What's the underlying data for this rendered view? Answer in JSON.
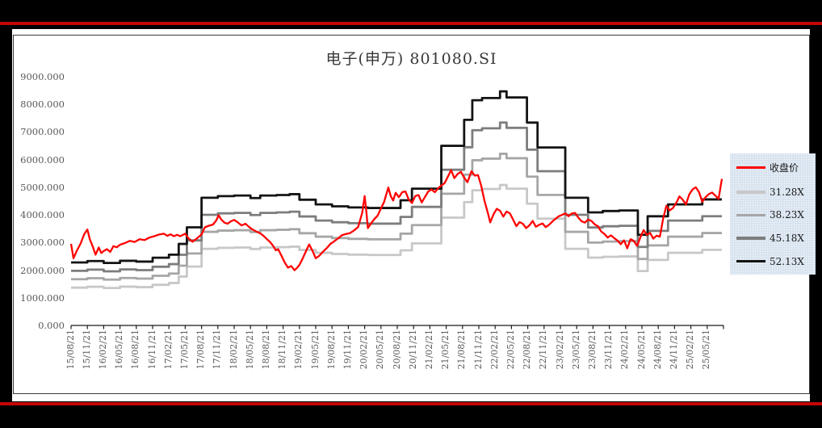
{
  "frame": {
    "background_color": "#000000",
    "accent_stripe_color": "#c40606"
  },
  "chart_data": {
    "type": "line",
    "title": "电子(申万) 801080.SI",
    "xlabel": "",
    "ylabel": "",
    "ylim": [
      0,
      9000
    ],
    "grid": false,
    "legend_position": "right",
    "y_tick_labels": [
      "9000.000",
      "8000.000",
      "7000.000",
      "6000.000",
      "5000.000",
      "4000.000",
      "3000.000",
      "2000.000",
      "1000.000",
      "0.000"
    ],
    "x_labels": [
      "15/08/21",
      "15/11/21",
      "16/02/21",
      "16/05/21",
      "16/08/21",
      "16/11/21",
      "17/02/21",
      "17/05/21",
      "17/08/21",
      "17/11/21",
      "18/02/21",
      "18/05/21",
      "18/08/21",
      "18/11/21",
      "19/02/21",
      "19/05/21",
      "19/08/21",
      "19/11/21",
      "20/02/21",
      "20/05/21",
      "20/08/21",
      "20/11/21",
      "21/02/21",
      "21/05/21",
      "21/08/21",
      "21/11/21",
      "22/02/21",
      "22/05/21",
      "22/08/21",
      "22/11/21",
      "23/02/21",
      "23/05/21",
      "23/08/21",
      "23/11/21",
      "24/02/21",
      "24/05/21",
      "24/08/21",
      "24/11/21",
      "25/02/21",
      "25/05/21"
    ],
    "legend": [
      {
        "label": "收盘价",
        "color": "#ff0000",
        "thickness": 3
      },
      {
        "label": "31.28X",
        "color": "#c8c8c8",
        "thickness": 3.5
      },
      {
        "label": "38.23X",
        "color": "#a6a6a6",
        "thickness": 3.5
      },
      {
        "label": "45.18X",
        "color": "#7d7d7d",
        "thickness": 3.5
      },
      {
        "label": "52.13X",
        "color": "#141414",
        "thickness": 3.5
      }
    ],
    "pe_bands": {
      "base_multiple": 52.13,
      "bands": [
        {
          "name": "31.28X",
          "multiple": 31.28,
          "color": "#c8c8c8"
        },
        {
          "name": "38.23X",
          "multiple": 38.23,
          "color": "#a6a6a6"
        },
        {
          "name": "45.18X",
          "multiple": 45.18,
          "color": "#7d7d7d"
        },
        {
          "name": "52.13X",
          "multiple": 52.13,
          "color": "#141414"
        }
      ],
      "base_band_steps": [
        [
          0,
          2280
        ],
        [
          1,
          2330
        ],
        [
          2,
          2260
        ],
        [
          3,
          2340
        ],
        [
          4,
          2310
        ],
        [
          5,
          2450
        ],
        [
          6,
          2560
        ],
        [
          6.6,
          2950
        ],
        [
          7.1,
          3550
        ],
        [
          8.0,
          4620
        ],
        [
          9.0,
          4680
        ],
        [
          10,
          4700
        ],
        [
          11,
          4610
        ],
        [
          11.6,
          4700
        ],
        [
          12.6,
          4720
        ],
        [
          13.4,
          4750
        ],
        [
          14,
          4550
        ],
        [
          15,
          4380
        ],
        [
          16,
          4310
        ],
        [
          17,
          4270
        ],
        [
          18.2,
          4250
        ],
        [
          20.2,
          4530
        ],
        [
          20.9,
          4950
        ],
        [
          22.7,
          6500
        ],
        [
          24.1,
          7440
        ],
        [
          24.6,
          8150
        ],
        [
          25.2,
          8230
        ],
        [
          26.3,
          8470
        ],
        [
          26.7,
          8250
        ],
        [
          27.95,
          7340
        ],
        [
          28.6,
          6440
        ],
        [
          30.3,
          4620
        ],
        [
          31.7,
          4090
        ],
        [
          32.6,
          4140
        ],
        [
          33.6,
          4160
        ],
        [
          34.75,
          3280
        ],
        [
          35.35,
          3950
        ],
        [
          36.6,
          4380
        ],
        [
          38.7,
          4560
        ],
        [
          39.9,
          4560
        ]
      ]
    },
    "close_series": {
      "name": "收盘价",
      "color": "#ff0000",
      "points": [
        [
          0,
          2950
        ],
        [
          0.15,
          2430
        ],
        [
          0.35,
          2700
        ],
        [
          0.6,
          2980
        ],
        [
          0.8,
          3300
        ],
        [
          1.0,
          3470
        ],
        [
          1.15,
          3120
        ],
        [
          1.3,
          2900
        ],
        [
          1.5,
          2560
        ],
        [
          1.7,
          2820
        ],
        [
          1.85,
          2620
        ],
        [
          2.0,
          2690
        ],
        [
          2.2,
          2760
        ],
        [
          2.4,
          2660
        ],
        [
          2.6,
          2870
        ],
        [
          2.8,
          2830
        ],
        [
          3.0,
          2920
        ],
        [
          3.3,
          2980
        ],
        [
          3.6,
          3060
        ],
        [
          3.9,
          3020
        ],
        [
          4.2,
          3120
        ],
        [
          4.5,
          3090
        ],
        [
          4.8,
          3180
        ],
        [
          5.1,
          3230
        ],
        [
          5.4,
          3290
        ],
        [
          5.7,
          3320
        ],
        [
          5.9,
          3240
        ],
        [
          6.1,
          3300
        ],
        [
          6.3,
          3230
        ],
        [
          6.5,
          3280
        ],
        [
          6.7,
          3230
        ],
        [
          7.0,
          3320
        ],
        [
          7.2,
          3150
        ],
        [
          7.45,
          3030
        ],
        [
          7.7,
          3140
        ],
        [
          8.0,
          3290
        ],
        [
          8.2,
          3550
        ],
        [
          8.45,
          3610
        ],
        [
          8.7,
          3650
        ],
        [
          8.9,
          3800
        ],
        [
          9.05,
          3990
        ],
        [
          9.2,
          3840
        ],
        [
          9.4,
          3720
        ],
        [
          9.6,
          3680
        ],
        [
          9.8,
          3770
        ],
        [
          10.0,
          3820
        ],
        [
          10.2,
          3740
        ],
        [
          10.45,
          3620
        ],
        [
          10.7,
          3680
        ],
        [
          10.9,
          3570
        ],
        [
          11.1,
          3480
        ],
        [
          11.35,
          3400
        ],
        [
          11.6,
          3330
        ],
        [
          11.8,
          3240
        ],
        [
          12.0,
          3130
        ],
        [
          12.2,
          3020
        ],
        [
          12.4,
          2870
        ],
        [
          12.55,
          2720
        ],
        [
          12.7,
          2760
        ],
        [
          12.9,
          2520
        ],
        [
          13.1,
          2280
        ],
        [
          13.3,
          2090
        ],
        [
          13.5,
          2150
        ],
        [
          13.7,
          2000
        ],
        [
          13.85,
          2080
        ],
        [
          14.0,
          2190
        ],
        [
          14.2,
          2420
        ],
        [
          14.45,
          2750
        ],
        [
          14.6,
          2930
        ],
        [
          14.8,
          2700
        ],
        [
          15.0,
          2430
        ],
        [
          15.2,
          2510
        ],
        [
          15.45,
          2670
        ],
        [
          15.7,
          2810
        ],
        [
          15.9,
          2950
        ],
        [
          16.1,
          3030
        ],
        [
          16.35,
          3140
        ],
        [
          16.6,
          3260
        ],
        [
          16.85,
          3310
        ],
        [
          17.1,
          3340
        ],
        [
          17.35,
          3440
        ],
        [
          17.6,
          3560
        ],
        [
          17.85,
          4080
        ],
        [
          18.0,
          4680
        ],
        [
          18.1,
          4150
        ],
        [
          18.2,
          3520
        ],
        [
          18.4,
          3700
        ],
        [
          18.6,
          3850
        ],
        [
          18.8,
          3980
        ],
        [
          19.0,
          4230
        ],
        [
          19.2,
          4480
        ],
        [
          19.45,
          4990
        ],
        [
          19.6,
          4680
        ],
        [
          19.75,
          4520
        ],
        [
          19.9,
          4800
        ],
        [
          20.1,
          4640
        ],
        [
          20.3,
          4820
        ],
        [
          20.5,
          4850
        ],
        [
          20.7,
          4560
        ],
        [
          20.9,
          4430
        ],
        [
          21.1,
          4680
        ],
        [
          21.3,
          4720
        ],
        [
          21.5,
          4450
        ],
        [
          21.7,
          4650
        ],
        [
          21.9,
          4850
        ],
        [
          22.1,
          4920
        ],
        [
          22.3,
          4820
        ],
        [
          22.5,
          4960
        ],
        [
          22.7,
          5060
        ],
        [
          22.9,
          5150
        ],
        [
          23.1,
          5380
        ],
        [
          23.3,
          5620
        ],
        [
          23.5,
          5330
        ],
        [
          23.7,
          5480
        ],
        [
          23.9,
          5560
        ],
        [
          24.1,
          5350
        ],
        [
          24.3,
          5180
        ],
        [
          24.55,
          5580
        ],
        [
          24.75,
          5420
        ],
        [
          24.95,
          5440
        ],
        [
          25.15,
          5050
        ],
        [
          25.35,
          4500
        ],
        [
          25.55,
          4080
        ],
        [
          25.7,
          3730
        ],
        [
          25.9,
          4020
        ],
        [
          26.1,
          4220
        ],
        [
          26.3,
          4150
        ],
        [
          26.5,
          3940
        ],
        [
          26.7,
          4120
        ],
        [
          26.9,
          4060
        ],
        [
          27.1,
          3830
        ],
        [
          27.3,
          3590
        ],
        [
          27.5,
          3740
        ],
        [
          27.7,
          3680
        ],
        [
          27.9,
          3520
        ],
        [
          28.1,
          3620
        ],
        [
          28.3,
          3780
        ],
        [
          28.5,
          3570
        ],
        [
          28.7,
          3640
        ],
        [
          28.9,
          3690
        ],
        [
          29.1,
          3560
        ],
        [
          29.3,
          3640
        ],
        [
          29.6,
          3810
        ],
        [
          29.9,
          3950
        ],
        [
          30.1,
          4000
        ],
        [
          30.3,
          4060
        ],
        [
          30.5,
          3950
        ],
        [
          30.7,
          4050
        ],
        [
          30.9,
          4070
        ],
        [
          31.1,
          3900
        ],
        [
          31.3,
          3770
        ],
        [
          31.5,
          3720
        ],
        [
          31.7,
          3830
        ],
        [
          31.9,
          3780
        ],
        [
          32.1,
          3660
        ],
        [
          32.3,
          3590
        ],
        [
          32.5,
          3400
        ],
        [
          32.7,
          3310
        ],
        [
          32.9,
          3180
        ],
        [
          33.1,
          3260
        ],
        [
          33.3,
          3160
        ],
        [
          33.5,
          3070
        ],
        [
          33.7,
          2940
        ],
        [
          33.9,
          3080
        ],
        [
          34.1,
          2790
        ],
        [
          34.3,
          3120
        ],
        [
          34.5,
          3060
        ],
        [
          34.7,
          2880
        ],
        [
          34.9,
          3180
        ],
        [
          35.1,
          3450
        ],
        [
          35.3,
          3280
        ],
        [
          35.5,
          3350
        ],
        [
          35.7,
          3140
        ],
        [
          35.9,
          3250
        ],
        [
          36.1,
          3210
        ],
        [
          36.3,
          3870
        ],
        [
          36.5,
          4330
        ],
        [
          36.7,
          4160
        ],
        [
          36.9,
          4250
        ],
        [
          37.1,
          4430
        ],
        [
          37.3,
          4670
        ],
        [
          37.5,
          4550
        ],
        [
          37.7,
          4380
        ],
        [
          37.9,
          4740
        ],
        [
          38.1,
          4920
        ],
        [
          38.3,
          5000
        ],
        [
          38.5,
          4820
        ],
        [
          38.7,
          4480
        ],
        [
          38.9,
          4640
        ],
        [
          39.1,
          4750
        ],
        [
          39.3,
          4810
        ],
        [
          39.5,
          4700
        ],
        [
          39.7,
          4580
        ],
        [
          39.9,
          5300
        ]
      ]
    }
  }
}
